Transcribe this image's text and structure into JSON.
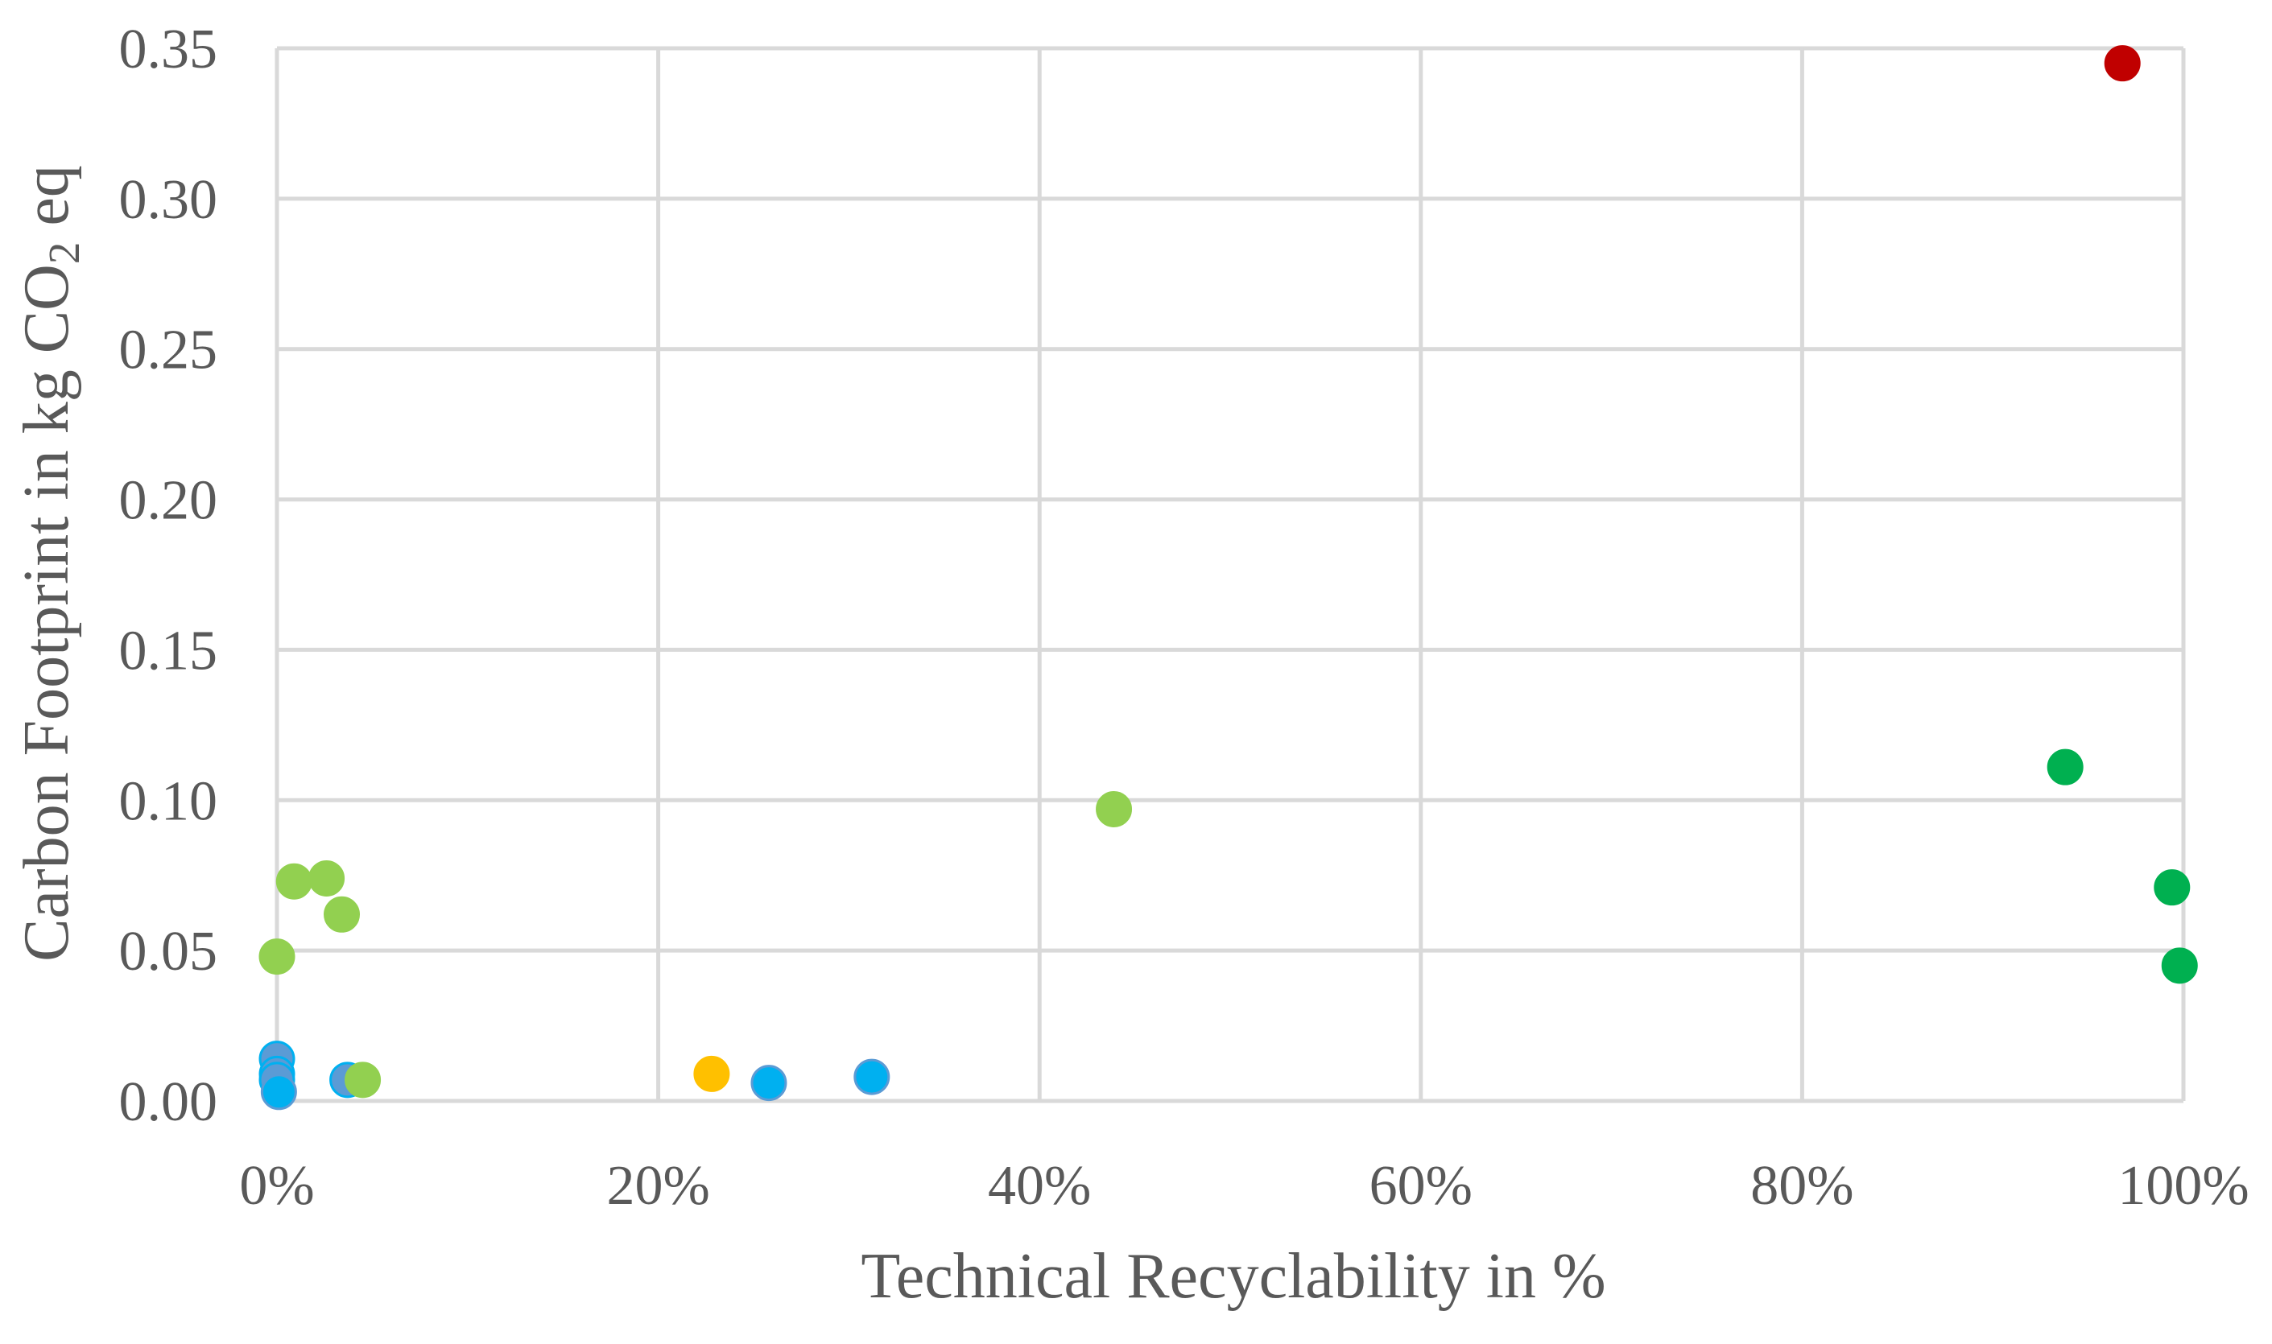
{
  "chart_data": {
    "type": "scatter",
    "title": "",
    "xlabel": "Technical Recyclability in %",
    "ylabel_parts": {
      "before": "Carbon Footprint in kg CO",
      "subscript": "2",
      "after": " eq"
    },
    "xlim": [
      0,
      100
    ],
    "ylim": [
      0,
      0.35
    ],
    "x_ticks": [
      0,
      20,
      40,
      60,
      80,
      100
    ],
    "x_tick_labels": [
      "0%",
      "20%",
      "40%",
      "60%",
      "80%",
      "100%"
    ],
    "y_ticks": [
      0,
      0.05,
      0.1,
      0.15,
      0.2,
      0.25,
      0.3,
      0.35
    ],
    "y_tick_labels": [
      "0.00",
      "0.05",
      "0.10",
      "0.15",
      "0.20",
      "0.25",
      "0.30",
      "0.35"
    ],
    "grid": true,
    "legend": "none",
    "series": [
      {
        "name": "blue-group",
        "color": "#5b9bd5",
        "outline": "#00b0f0",
        "points": [
          {
            "x": 0.0,
            "y": 0.014
          },
          {
            "x": 0.0,
            "y": 0.009
          },
          {
            "x": 0.0,
            "y": 0.007
          },
          {
            "x": 3.7,
            "y": 0.007
          }
        ]
      },
      {
        "name": "cyan-group",
        "color": "#00b0f0",
        "outline": "#5b9bd5",
        "points": [
          {
            "x": 0.1,
            "y": 0.003
          },
          {
            "x": 25.8,
            "y": 0.006
          },
          {
            "x": 31.2,
            "y": 0.008
          }
        ]
      },
      {
        "name": "light-green-group",
        "color": "#92d050",
        "outline": "#92d050",
        "points": [
          {
            "x": 0.0,
            "y": 0.048
          },
          {
            "x": 0.9,
            "y": 0.073
          },
          {
            "x": 2.6,
            "y": 0.074
          },
          {
            "x": 3.4,
            "y": 0.062
          },
          {
            "x": 4.5,
            "y": 0.007
          },
          {
            "x": 43.9,
            "y": 0.097
          }
        ]
      },
      {
        "name": "yellow-group",
        "color": "#ffc000",
        "outline": "#ffc000",
        "points": [
          {
            "x": 22.8,
            "y": 0.009
          }
        ]
      },
      {
        "name": "green-group",
        "color": "#00b050",
        "outline": "#00b050",
        "points": [
          {
            "x": 93.8,
            "y": 0.111
          },
          {
            "x": 99.4,
            "y": 0.071
          },
          {
            "x": 99.8,
            "y": 0.045
          }
        ]
      },
      {
        "name": "red-group",
        "color": "#c00000",
        "outline": "#c00000",
        "points": [
          {
            "x": 96.8,
            "y": 0.345
          }
        ]
      }
    ]
  }
}
